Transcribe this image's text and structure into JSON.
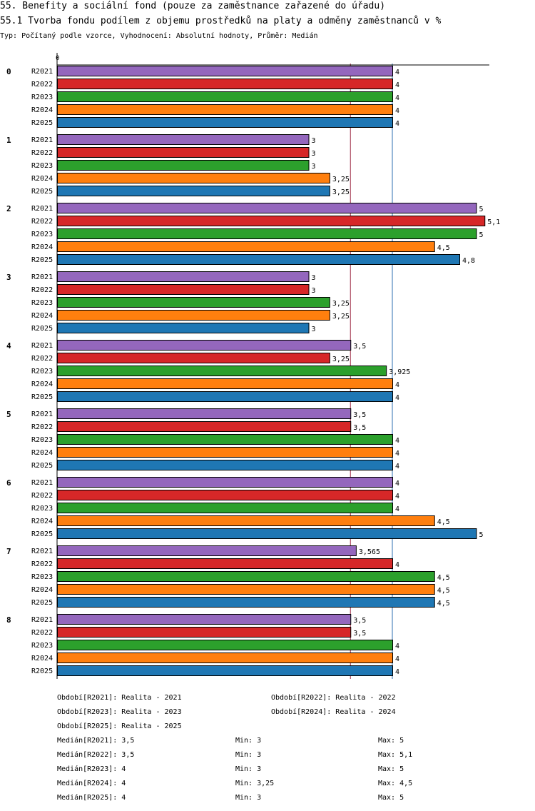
{
  "title": "55. Benefity a sociální fond (pouze za zaměstnance zařazené do úřadu)",
  "subtitle": "55.1 Tvorba fondu podílem z objemu prostředků na platy a odměny zaměstnanců v %",
  "meta": "Typ: Počítaný podle vzorce, Vyhodnocení: Absolutní hodnoty, Průměr: Medián",
  "chart_data": {
    "type": "bar",
    "orientation": "horizontal",
    "axis_zero_label": "0",
    "xlim": [
      0,
      5.2
    ],
    "reference_lines": [
      3.5,
      4
    ],
    "categories": [
      "0",
      "1",
      "2",
      "3",
      "4",
      "5",
      "6",
      "7",
      "8"
    ],
    "series": [
      {
        "name": "R2021",
        "color": "#9467bd",
        "values": [
          4,
          3,
          5,
          3,
          3.5,
          3.5,
          4,
          3.565,
          3.5
        ],
        "labels": [
          "4",
          "3",
          "5",
          "3",
          "3,5",
          "3,5",
          "4",
          "3,565",
          "3,5"
        ]
      },
      {
        "name": "R2022",
        "color": "#d62728",
        "values": [
          4,
          3,
          5.1,
          3,
          3.25,
          3.5,
          4,
          4,
          3.5
        ],
        "labels": [
          "4",
          "3",
          "5,1",
          "3",
          "3,25",
          "3,5",
          "4",
          "4",
          "3,5"
        ]
      },
      {
        "name": "R2023",
        "color": "#2ca02c",
        "values": [
          4,
          3,
          5,
          3.25,
          3.925,
          4,
          4,
          4.5,
          4
        ],
        "labels": [
          "4",
          "3",
          "5",
          "3,25",
          "3,925",
          "4",
          "4",
          "4,5",
          "4"
        ]
      },
      {
        "name": "R2024",
        "color": "#ff7f0e",
        "values": [
          4,
          3.25,
          4.5,
          3.25,
          4,
          4,
          4.5,
          4.5,
          4
        ],
        "labels": [
          "4",
          "3,25",
          "4,5",
          "3,25",
          "4",
          "4",
          "4,5",
          "4,5",
          "4"
        ]
      },
      {
        "name": "R2025",
        "color": "#1f77b4",
        "values": [
          4,
          3.25,
          4.8,
          3,
          4,
          4,
          5,
          4.5,
          4
        ],
        "labels": [
          "4",
          "3,25",
          "4,8",
          "3",
          "4",
          "4",
          "5",
          "4,5",
          "4"
        ]
      }
    ]
  },
  "legend": {
    "periods": [
      "Období[R2021]: Realita - 2021",
      "Období[R2022]: Realita - 2022",
      "Období[R2023]: Realita - 2023",
      "Období[R2024]: Realita - 2024",
      "Období[R2025]: Realita - 2025"
    ],
    "stats": [
      {
        "median": "Medián[R2021]: 3,5",
        "min": "Min: 3",
        "max": "Max: 5"
      },
      {
        "median": "Medián[R2022]: 3,5",
        "min": "Min: 3",
        "max": "Max: 5,1"
      },
      {
        "median": "Medián[R2023]: 4",
        "min": "Min: 3",
        "max": "Max: 5"
      },
      {
        "median": "Medián[R2024]: 4",
        "min": "Min: 3,25",
        "max": "Max: 4,5"
      },
      {
        "median": "Medián[R2025]: 4",
        "min": "Min: 3",
        "max": "Max: 5"
      }
    ]
  }
}
